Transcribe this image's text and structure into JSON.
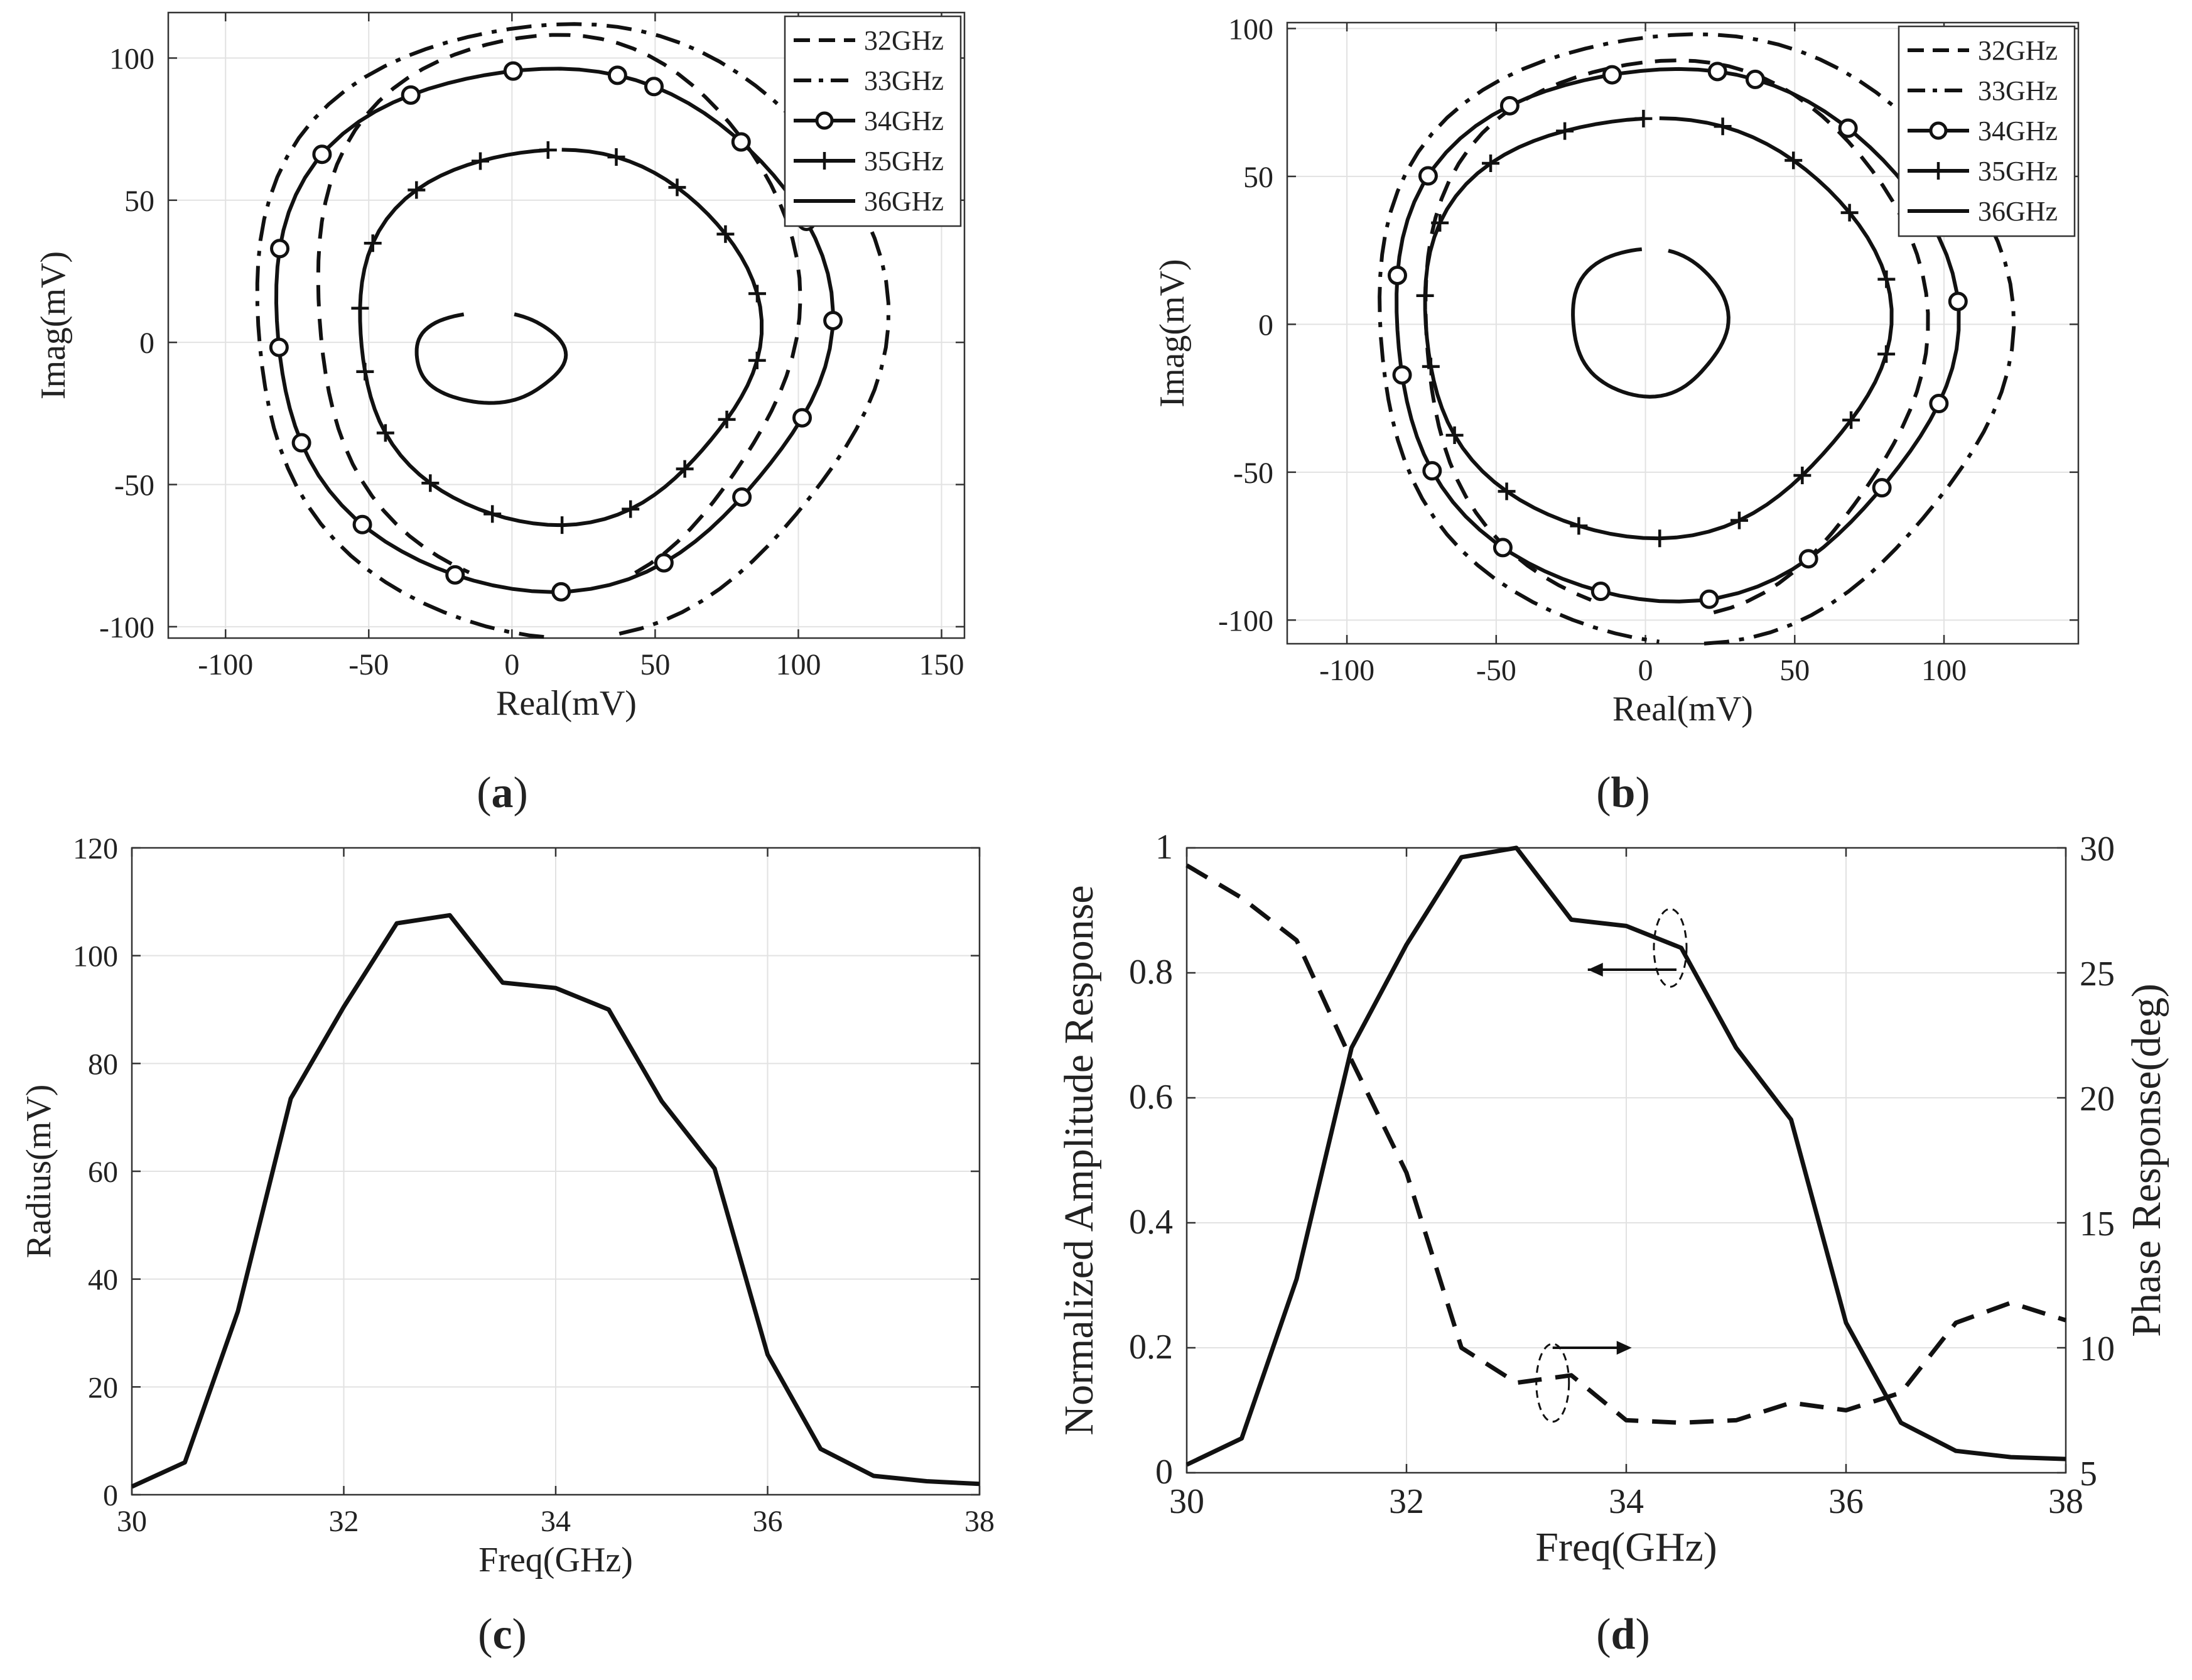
{
  "chart_data": [
    {
      "id": "a",
      "type": "line",
      "caption": "(a)",
      "xlabel": "Real(mV)",
      "ylabel": "Imag(mV)",
      "xlim": [
        -120,
        158
      ],
      "ylim": [
        -104,
        116
      ],
      "xticks": [
        -100,
        -50,
        0,
        50,
        100,
        150
      ],
      "yticks": [
        -100,
        -50,
        0,
        50,
        100
      ],
      "legend_position": "top-right",
      "series": [
        {
          "name": "32GHz",
          "style": "dash",
          "center": [
            14,
            12
          ],
          "rx": 84,
          "ry": 98,
          "start": -70,
          "end": 251
        },
        {
          "name": "33GHz",
          "style": "dashdot",
          "center": [
            18,
            6
          ],
          "rx": 110,
          "ry": 108,
          "start": -80,
          "end": 270
        },
        {
          "name": "34GHz",
          "style": "circle",
          "center": [
            12,
            6
          ],
          "rx": 97,
          "ry": 92,
          "start": 75,
          "end": 440
        },
        {
          "name": "35GHz",
          "style": "plus",
          "center": [
            15,
            3
          ],
          "rx": 70,
          "ry": 66,
          "start": 92,
          "end": 450
        },
        {
          "name": "36GHz",
          "style": "solid",
          "center": [
            -8,
            -5
          ],
          "rx": 26,
          "ry": 16,
          "start": 110,
          "end": 430
        }
      ]
    },
    {
      "id": "b",
      "type": "line",
      "caption": "(b)",
      "xlabel": "Real(mV)",
      "ylabel": "Imag(mV)",
      "xlim": [
        -120,
        145
      ],
      "ylim": [
        -108,
        102
      ],
      "xticks": [
        -100,
        -50,
        0,
        50,
        100
      ],
      "yticks": [
        -100,
        -50,
        0,
        50,
        100
      ],
      "legend_position": "top-right",
      "series": [
        {
          "name": "32GHz",
          "style": "dash",
          "center": [
            8,
            -3
          ],
          "rx": 84,
          "ry": 94,
          "start": -80,
          "end": 252
        },
        {
          "name": "33GHz",
          "style": "dashdot",
          "center": [
            14,
            -3
          ],
          "rx": 106,
          "ry": 103,
          "start": -87,
          "end": 265
        },
        {
          "name": "34GHz",
          "style": "circle",
          "center": [
            8,
            -2
          ],
          "rx": 94,
          "ry": 90,
          "start": 80,
          "end": 440
        },
        {
          "name": "35GHz",
          "style": "plus",
          "center": [
            2,
            0
          ],
          "rx": 78,
          "ry": 71,
          "start": 92,
          "end": 450
        },
        {
          "name": "36GHz",
          "style": "solid",
          "center": [
            1,
            1
          ],
          "rx": 26,
          "ry": 25,
          "start": 95,
          "end": 435
        }
      ]
    },
    {
      "id": "c",
      "type": "line",
      "caption": "(c)",
      "xlabel": "Freq(GHz)",
      "ylabel": "Radius(mV)",
      "xlim": [
        30,
        38
      ],
      "ylim": [
        0,
        120
      ],
      "xticks": [
        30,
        32,
        34,
        36,
        38
      ],
      "yticks": [
        0,
        20,
        40,
        60,
        80,
        100,
        120
      ],
      "x": [
        30,
        30.5,
        31,
        31.5,
        32,
        32.5,
        33,
        33.5,
        34,
        34.5,
        35,
        35.5,
        36,
        36.5,
        37,
        37.5,
        38
      ],
      "series": [
        {
          "name": "Radius",
          "values": [
            1.5,
            6,
            34,
            73.5,
            90.5,
            106,
            107.5,
            95,
            94,
            90,
            73,
            60.5,
            26,
            8.5,
            3.5,
            2.5,
            2
          ]
        }
      ]
    },
    {
      "id": "d",
      "type": "line",
      "caption": "(d)",
      "xlabel": "Freq(GHz)",
      "ylabel": "Normalized Amplitude Response",
      "y2label": "Phase Response(deg)",
      "xlim": [
        30,
        38
      ],
      "ylim": [
        0,
        1
      ],
      "y2lim": [
        5,
        30
      ],
      "xticks": [
        30,
        32,
        34,
        36,
        38
      ],
      "yticks": [
        0,
        0.2,
        0.4,
        0.6,
        0.8,
        1
      ],
      "y2ticks": [
        5,
        10,
        15,
        20,
        25,
        30
      ],
      "x": [
        30,
        30.5,
        31,
        31.5,
        32,
        32.5,
        33,
        33.5,
        34,
        34.5,
        35,
        35.5,
        36,
        36.5,
        37,
        37.5,
        38
      ],
      "series": [
        {
          "name": "Normalized Amplitude Response",
          "axis": "left",
          "style": "solid",
          "values": [
            0.013,
            0.055,
            0.31,
            0.68,
            0.845,
            0.985,
            1.0,
            0.885,
            0.875,
            0.84,
            0.68,
            0.565,
            0.24,
            0.08,
            0.035,
            0.025,
            0.022
          ]
        },
        {
          "name": "Phase Response",
          "axis": "right",
          "style": "dash",
          "values": [
            29.3,
            28.0,
            26.3,
            21.5,
            17.0,
            10.0,
            8.6,
            8.9,
            7.1,
            7.0,
            7.1,
            7.8,
            7.5,
            8.2,
            11.0,
            11.8,
            11.1
          ]
        }
      ]
    }
  ]
}
